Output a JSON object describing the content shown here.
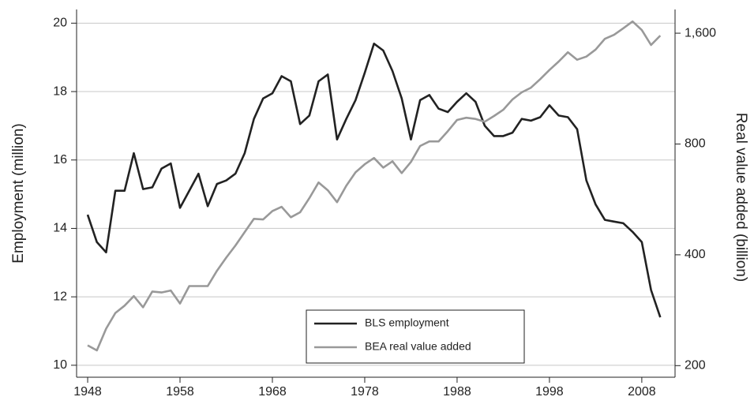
{
  "chart_data": {
    "type": "line",
    "x": [
      1948,
      1949,
      1950,
      1951,
      1952,
      1953,
      1954,
      1955,
      1956,
      1957,
      1958,
      1959,
      1960,
      1961,
      1962,
      1963,
      1964,
      1965,
      1966,
      1967,
      1968,
      1969,
      1970,
      1971,
      1972,
      1973,
      1974,
      1975,
      1976,
      1977,
      1978,
      1979,
      1980,
      1981,
      1982,
      1983,
      1984,
      1985,
      1986,
      1987,
      1988,
      1989,
      1990,
      1991,
      1992,
      1993,
      1994,
      1995,
      1996,
      1997,
      1998,
      1999,
      2000,
      2001,
      2002,
      2003,
      2004,
      2005,
      2006,
      2007,
      2008,
      2009,
      2010
    ],
    "series": [
      {
        "name": "BLS employment",
        "color": "#222222",
        "axis": "y",
        "values": [
          14.4,
          13.6,
          13.3,
          15.1,
          15.1,
          16.2,
          15.15,
          15.2,
          15.75,
          15.9,
          14.6,
          15.1,
          15.6,
          14.65,
          15.3,
          15.4,
          15.6,
          16.2,
          17.2,
          17.8,
          17.95,
          18.45,
          18.3,
          17.05,
          17.3,
          18.3,
          18.5,
          16.6,
          17.2,
          17.75,
          18.55,
          19.4,
          19.2,
          18.6,
          17.8,
          16.6,
          17.75,
          17.9,
          17.5,
          17.4,
          17.7,
          17.95,
          17.7,
          17.0,
          16.7,
          16.7,
          16.8,
          17.2,
          17.15,
          17.25,
          17.6,
          17.3,
          17.25,
          16.9,
          15.4,
          14.7,
          14.25,
          14.2,
          14.15,
          13.9,
          13.6,
          12.2,
          11.4
        ]
      },
      {
        "name": "BEA real value added",
        "color": "#999999",
        "axis": "y2",
        "values": [
          227,
          220,
          252,
          278,
          291,
          309,
          288,
          318,
          316,
          320,
          295,
          329,
          329,
          329,
          362,
          393,
          424,
          461,
          501,
          499,
          526,
          540,
          506,
          522,
          570,
          629,
          599,
          556,
          616,
          670,
          705,
          733,
          690,
          718,
          667,
          715,
          790,
          813,
          813,
          867,
          930,
          943,
          936,
          920,
          953,
          991,
          1057,
          1105,
          1138,
          1200,
          1271,
          1340,
          1420,
          1355,
          1382,
          1444,
          1545,
          1584,
          1650,
          1722,
          1632,
          1486,
          1576
        ]
      }
    ],
    "xlim": [
      1946.8,
      2011.6
    ],
    "xticks": [
      1948,
      1958,
      1968,
      1978,
      1988,
      1998,
      2008
    ],
    "ylim": [
      9.65,
      20.4
    ],
    "yticks": [
      10,
      12,
      14,
      16,
      18,
      20
    ],
    "y2lim": [
      186,
      1856
    ],
    "y2ticks": [
      200,
      400,
      800,
      {
        "value": 1600,
        "label": "1,600"
      }
    ],
    "y2log": true,
    "ylabel": "Employment (million)",
    "y2label": "Real value added (billion)",
    "grid": true,
    "legend": "bottom"
  }
}
